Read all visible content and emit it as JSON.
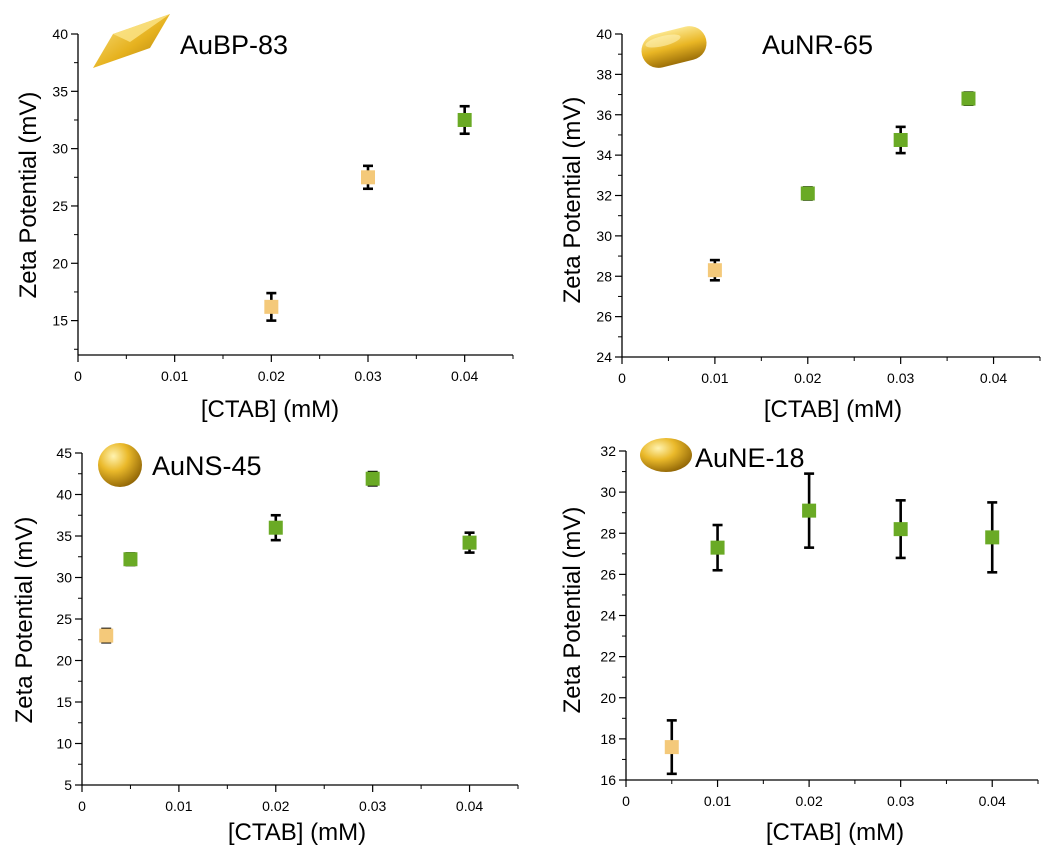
{
  "colors": {
    "low_marker": "#f4c97a",
    "high_marker": "#6aaa25",
    "error_bar": "#000000",
    "axis": "#000000",
    "gold_light": "#fbe58a",
    "gold_mid": "#e9b624",
    "gold_dark": "#9c6f08"
  },
  "chart_data": [
    {
      "type": "scatter",
      "title": "AuBP-83",
      "icon": "gold-bipyramid-icon",
      "xlabel": "[CTAB] (mM)",
      "ylabel": "Zeta Potential (mV)",
      "xlim": [
        0,
        0.045
      ],
      "ylim": [
        12,
        40
      ],
      "x_ticks": [
        0,
        0.01,
        0.02,
        0.03,
        0.04
      ],
      "x_tick_labels": [
        "0",
        "0.01",
        "0.02",
        "0.03",
        "0.04"
      ],
      "y_ticks": [
        15,
        20,
        25,
        30,
        35,
        40
      ],
      "y_tick_labels": [
        "15",
        "20",
        "25",
        "30",
        "35",
        "40"
      ],
      "grid": false,
      "points": [
        {
          "x": 0.02,
          "y": 16.2,
          "err": 1.2,
          "group": "low"
        },
        {
          "x": 0.03,
          "y": 27.5,
          "err": 1.0,
          "group": "low"
        },
        {
          "x": 0.04,
          "y": 32.5,
          "err": 1.2,
          "group": "high"
        }
      ]
    },
    {
      "type": "scatter",
      "title": "AuNR-65",
      "icon": "gold-nanorod-icon",
      "xlabel": "[CTAB] (mM)",
      "ylabel": "Zeta Potential (mV)",
      "xlim": [
        0,
        0.045
      ],
      "ylim": [
        24,
        40
      ],
      "x_ticks": [
        0,
        0.01,
        0.02,
        0.03,
        0.04
      ],
      "x_tick_labels": [
        "0",
        "0.01",
        "0.02",
        "0.03",
        "0.04"
      ],
      "y_ticks": [
        24,
        26,
        28,
        30,
        32,
        34,
        36,
        38,
        40
      ],
      "y_tick_labels": [
        "24",
        "26",
        "28",
        "30",
        "32",
        "34",
        "36",
        "38",
        "40"
      ],
      "grid": false,
      "points": [
        {
          "x": 0.01,
          "y": 28.3,
          "err": 0.5,
          "group": "low"
        },
        {
          "x": 0.02,
          "y": 32.1,
          "err": 0.3,
          "group": "high"
        },
        {
          "x": 0.03,
          "y": 34.75,
          "err": 0.65,
          "group": "high"
        },
        {
          "x": 0.0373,
          "y": 36.8,
          "err": 0.3,
          "group": "high"
        }
      ]
    },
    {
      "type": "scatter",
      "title": "AuNS-45",
      "icon": "gold-nanosphere-icon",
      "xlabel": "[CTAB] (mM)",
      "ylabel": "Zeta Potential (mV)",
      "xlim": [
        0,
        0.045
      ],
      "ylim": [
        5,
        45
      ],
      "x_ticks": [
        0,
        0.01,
        0.02,
        0.03,
        0.04
      ],
      "x_tick_labels": [
        "0",
        "0.01",
        "0.02",
        "0.03",
        "0.04"
      ],
      "y_ticks": [
        5,
        10,
        15,
        20,
        25,
        30,
        35,
        40,
        45
      ],
      "y_tick_labels": [
        "5",
        "10",
        "15",
        "20",
        "25",
        "30",
        "35",
        "40",
        "45"
      ],
      "grid": false,
      "points": [
        {
          "x": 0.0025,
          "y": 23.0,
          "err": 0.8,
          "group": "low"
        },
        {
          "x": 0.005,
          "y": 32.2,
          "err": 0.7,
          "group": "high"
        },
        {
          "x": 0.02,
          "y": 36.0,
          "err": 1.5,
          "group": "high"
        },
        {
          "x": 0.03,
          "y": 41.9,
          "err": 0.8,
          "group": "high"
        },
        {
          "x": 0.04,
          "y": 34.2,
          "err": 1.2,
          "group": "high"
        }
      ]
    },
    {
      "type": "scatter",
      "title": "AuNE-18",
      "icon": "gold-ellipsoid-icon",
      "xlabel": "[CTAB] (mM)",
      "ylabel": "Zeta Potential (mV)",
      "xlim": [
        0,
        0.045
      ],
      "ylim": [
        16,
        32
      ],
      "x_ticks": [
        0,
        0.01,
        0.02,
        0.03,
        0.04
      ],
      "x_tick_labels": [
        "0",
        "0.01",
        "0.02",
        "0.03",
        "0.04"
      ],
      "y_ticks": [
        16,
        18,
        20,
        22,
        24,
        26,
        28,
        30,
        32
      ],
      "y_tick_labels": [
        "16",
        "18",
        "20",
        "22",
        "24",
        "26",
        "28",
        "30",
        "32"
      ],
      "grid": false,
      "points": [
        {
          "x": 0.005,
          "y": 17.6,
          "err": 1.3,
          "group": "low"
        },
        {
          "x": 0.01,
          "y": 27.3,
          "err": 1.1,
          "group": "high"
        },
        {
          "x": 0.02,
          "y": 29.1,
          "err": 1.8,
          "group": "high"
        },
        {
          "x": 0.03,
          "y": 28.2,
          "err": 1.4,
          "group": "high"
        },
        {
          "x": 0.04,
          "y": 27.8,
          "err": 1.7,
          "group": "high"
        }
      ]
    }
  ]
}
